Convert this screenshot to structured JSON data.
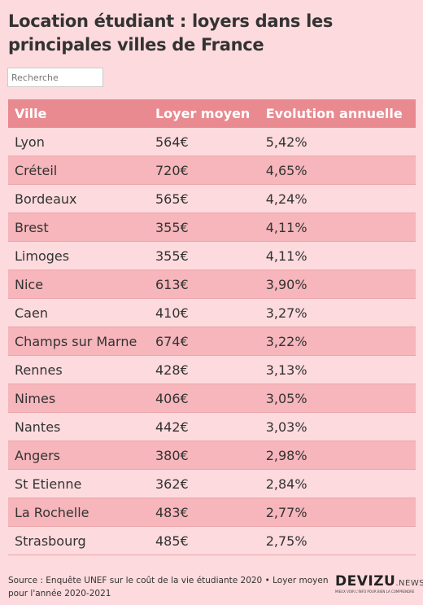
{
  "header": {
    "title": "Location étudiant : loyers dans les principales villes de France"
  },
  "search": {
    "placeholder": "Recherche"
  },
  "table": {
    "columns": [
      "Ville",
      "Loyer moyen",
      "Evolution annuelle"
    ],
    "rows": [
      [
        "Lyon",
        "564€",
        "5,42%"
      ],
      [
        "Créteil",
        "720€",
        "4,65%"
      ],
      [
        "Bordeaux",
        "565€",
        "4,24%"
      ],
      [
        "Brest",
        "355€",
        "4,11%"
      ],
      [
        "Limoges",
        "355€",
        "4,11%"
      ],
      [
        "Nice",
        "613€",
        "3,90%"
      ],
      [
        "Caen",
        "410€",
        "3,27%"
      ],
      [
        "Champs sur Marne",
        "674€",
        "3,22%"
      ],
      [
        "Rennes",
        "428€",
        "3,13%"
      ],
      [
        "Nimes",
        "406€",
        "3,05%"
      ],
      [
        "Nantes",
        "442€",
        "3,03%"
      ],
      [
        "Angers",
        "380€",
        "2,98%"
      ],
      [
        "St Etienne",
        "362€",
        "2,84%"
      ],
      [
        "La Rochelle",
        "483€",
        "2,77%"
      ],
      [
        "Strasbourg",
        "485€",
        "2,75%"
      ]
    ]
  },
  "footer": {
    "source": "Source : Enquête UNEF sur le coût de la vie étudiante 2020 • Loyer moyen pour l'année 2020-2021",
    "logo": "DEVIZU",
    "logo_suffix": ".NEWS",
    "tagline": "MIEUX VOIR L'INFO POUR BIEN LA COMPRENDRE"
  }
}
